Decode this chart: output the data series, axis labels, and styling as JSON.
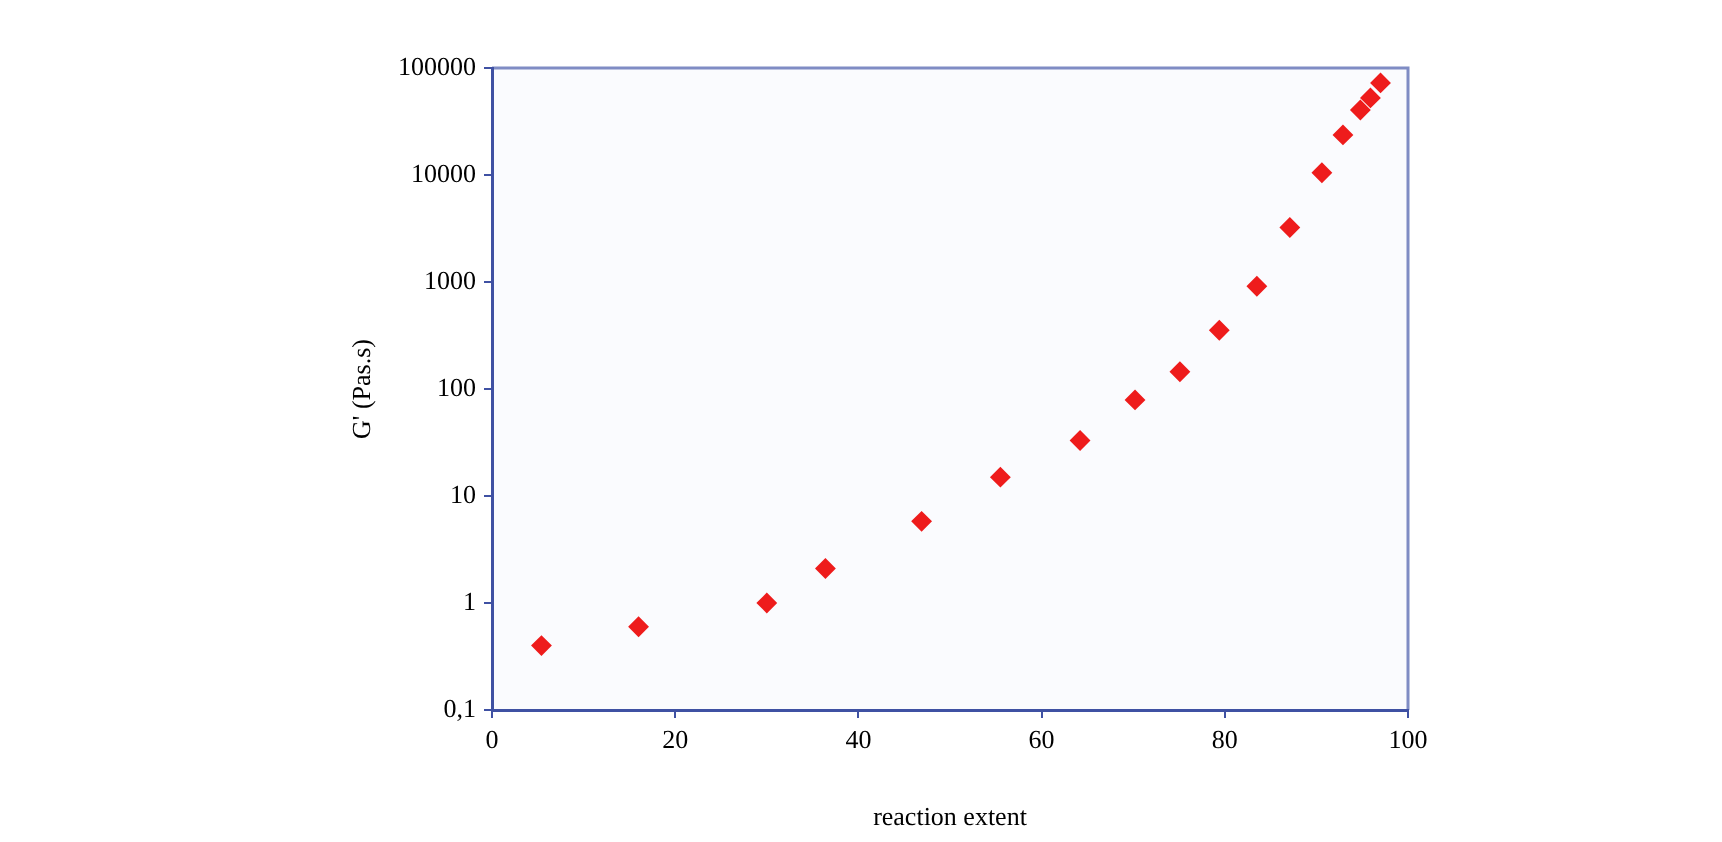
{
  "chart_data": {
    "type": "scatter",
    "xlabel": "reaction extent",
    "ylabel": "G' (Pas.s)",
    "log": "y",
    "xlim": [
      0,
      100
    ],
    "xticks": [
      0,
      20,
      40,
      60,
      80,
      100
    ],
    "ylim": [
      0.1,
      100000
    ],
    "yticks": [
      {
        "value": 0.1,
        "label": "0,1"
      },
      1,
      10,
      100,
      1000,
      10000,
      100000
    ],
    "grid": false,
    "legend": false,
    "marker": "diamond",
    "series": [
      {
        "color": "#ee1c1c",
        "x": [
          5.4,
          16.0,
          30.0,
          36.4,
          46.9,
          55.5,
          64.2,
          70.2,
          75.1,
          79.4,
          83.5,
          87.1,
          90.6,
          92.9,
          94.8,
          95.9,
          97.0
        ],
        "values": [
          0.4,
          0.6,
          1.0,
          2.1,
          5.8,
          15,
          33,
          79,
          145,
          354,
          912,
          3230,
          10500,
          23700,
          40500,
          52500,
          72500
        ]
      }
    ]
  }
}
